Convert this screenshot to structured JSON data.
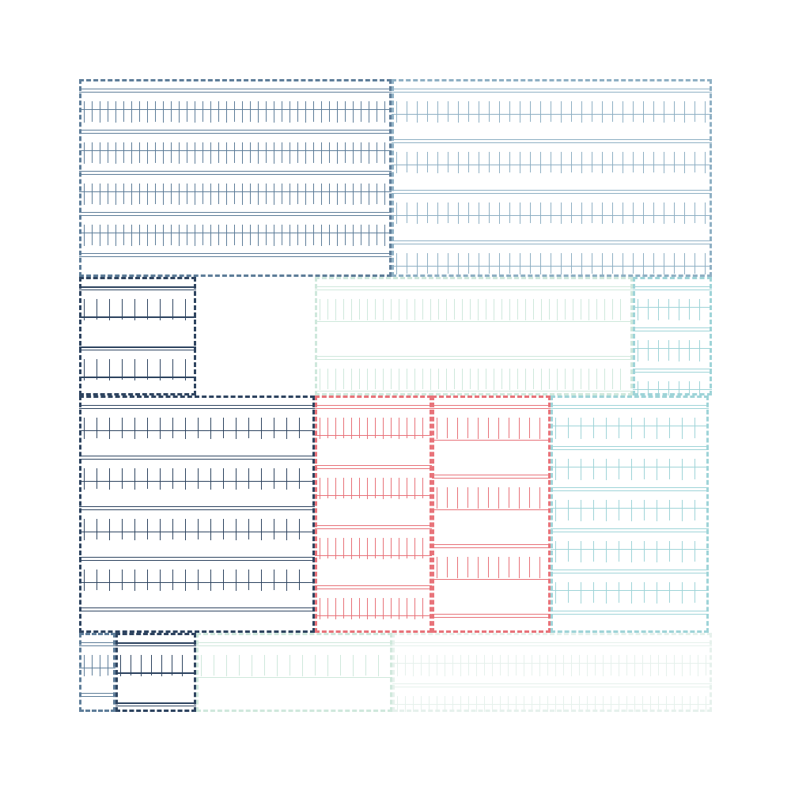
{
  "colors": {
    "navy": "#2e4460",
    "slate": "#5e7d99",
    "steel": "#8fb0c4",
    "gray": "#7a8aa0",
    "coral": "#e8737a",
    "teal": "#9fd4d8",
    "mint": "#cfe8dc",
    "pale": "#e6f1ec",
    "white": "#ffffff"
  },
  "panels": [
    {
      "id": "panel-a",
      "color": "slate",
      "weight": "light"
    },
    {
      "id": "panel-b",
      "color": "steel",
      "weight": "light"
    },
    {
      "id": "panel-c",
      "color": "navy",
      "weight": "heavy"
    },
    {
      "id": "panel-d",
      "color": "mint",
      "weight": "light"
    },
    {
      "id": "panel-e",
      "color": "teal",
      "weight": "light"
    },
    {
      "id": "panel-f",
      "color": "navy",
      "weight": "medium"
    },
    {
      "id": "panel-g",
      "color": "coral",
      "weight": "light"
    },
    {
      "id": "panel-h",
      "color": "coral",
      "weight": "medium"
    },
    {
      "id": "panel-i",
      "color": "teal",
      "weight": "light"
    },
    {
      "id": "panel-j",
      "color": "slate",
      "weight": "light"
    },
    {
      "id": "panel-k",
      "color": "navy",
      "weight": "heavy"
    },
    {
      "id": "panel-l",
      "color": "mint",
      "weight": "light"
    },
    {
      "id": "panel-m",
      "color": "pale",
      "weight": "light"
    }
  ]
}
